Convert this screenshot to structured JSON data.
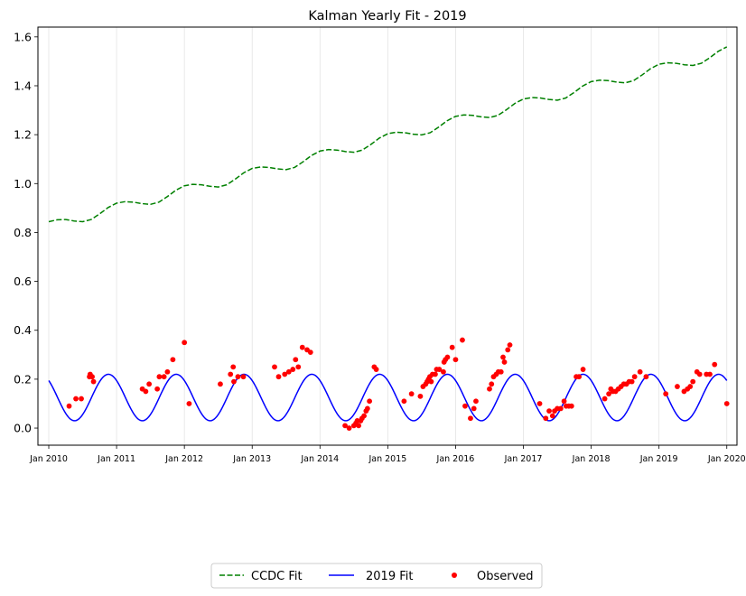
{
  "chart_data": {
    "type": "line",
    "title": "Kalman Yearly Fit - 2019",
    "xlabel": "",
    "ylabel": "",
    "xlim": [
      2009.84,
      2020.15
    ],
    "ylim": [
      -0.07,
      1.64
    ],
    "grid": "vertical-only",
    "x_ticks": [
      {
        "value": 2010,
        "label": "Jan 2010"
      },
      {
        "value": 2011,
        "label": "Jan 2011"
      },
      {
        "value": 2012,
        "label": "Jan 2012"
      },
      {
        "value": 2013,
        "label": "Jan 2013"
      },
      {
        "value": 2014,
        "label": "Jan 2014"
      },
      {
        "value": 2015,
        "label": "Jan 2015"
      },
      {
        "value": 2016,
        "label": "Jan 2016"
      },
      {
        "value": 2017,
        "label": "Jan 2017"
      },
      {
        "value": 2018,
        "label": "Jan 2018"
      },
      {
        "value": 2019,
        "label": "Jan 2019"
      },
      {
        "value": 2020,
        "label": "Jan 2020"
      }
    ],
    "y_ticks": [
      {
        "value": 0.0,
        "label": "0.0"
      },
      {
        "value": 0.2,
        "label": "0.2"
      },
      {
        "value": 0.4,
        "label": "0.4"
      },
      {
        "value": 0.6,
        "label": "0.6"
      },
      {
        "value": 0.8,
        "label": "0.8"
      },
      {
        "value": 1.0,
        "label": "1.0"
      },
      {
        "value": 1.2,
        "label": "1.2"
      },
      {
        "value": 1.4,
        "label": "1.4"
      },
      {
        "value": 1.6,
        "label": "1.6"
      }
    ],
    "legend": {
      "placement": "bottom-center",
      "entries": [
        {
          "label": "CCDC Fit",
          "series": "ccdc"
        },
        {
          "label": "2019 Fit",
          "series": "fit2019"
        },
        {
          "label": "Observed",
          "series": "observed"
        }
      ]
    },
    "series": [
      {
        "id": "ccdc",
        "name": "CCDC Fit",
        "style": "dashed",
        "color": "#008000",
        "x": [
          2010.0,
          2010.125,
          2010.25,
          2010.375,
          2010.5,
          2010.625,
          2010.75,
          2010.875,
          2011.0,
          2011.125,
          2011.25,
          2011.375,
          2011.5,
          2011.625,
          2011.75,
          2011.875,
          2012.0,
          2012.125,
          2012.25,
          2012.375,
          2012.5,
          2012.625,
          2012.75,
          2012.875,
          2013.0,
          2013.125,
          2013.25,
          2013.375,
          2013.5,
          2013.625,
          2013.75,
          2013.875,
          2014.0,
          2014.125,
          2014.25,
          2014.375,
          2014.5,
          2014.625,
          2014.75,
          2014.875,
          2015.0,
          2015.125,
          2015.25,
          2015.375,
          2015.5,
          2015.625,
          2015.75,
          2015.875,
          2016.0,
          2016.125,
          2016.25,
          2016.375,
          2016.5,
          2016.625,
          2016.75,
          2016.875,
          2017.0,
          2017.125,
          2017.25,
          2017.375,
          2017.5,
          2017.625,
          2017.75,
          2017.875,
          2018.0,
          2018.125,
          2018.25,
          2018.375,
          2018.5,
          2018.625,
          2018.75,
          2018.875,
          2019.0,
          2019.125,
          2019.25,
          2019.375,
          2019.5,
          2019.625,
          2019.75,
          2019.875,
          2020.0
        ],
        "values": [
          0.844,
          0.852,
          0.853,
          0.847,
          0.844,
          0.853,
          0.876,
          0.902,
          0.92,
          0.926,
          0.924,
          0.918,
          0.915,
          0.924,
          0.947,
          0.973,
          0.991,
          0.997,
          0.995,
          0.989,
          0.986,
          0.995,
          1.018,
          1.044,
          1.062,
          1.068,
          1.066,
          1.06,
          1.057,
          1.066,
          1.089,
          1.115,
          1.133,
          1.139,
          1.137,
          1.131,
          1.128,
          1.137,
          1.16,
          1.186,
          1.204,
          1.21,
          1.208,
          1.202,
          1.199,
          1.208,
          1.231,
          1.257,
          1.275,
          1.281,
          1.279,
          1.273,
          1.27,
          1.279,
          1.302,
          1.328,
          1.346,
          1.352,
          1.35,
          1.344,
          1.341,
          1.35,
          1.373,
          1.399,
          1.417,
          1.423,
          1.421,
          1.415,
          1.412,
          1.421,
          1.444,
          1.47,
          1.488,
          1.494,
          1.492,
          1.486,
          1.483,
          1.492,
          1.515,
          1.541,
          1.559
        ]
      },
      {
        "id": "fit2019",
        "name": "2019 Fit",
        "style": "solid",
        "color": "#0000ff",
        "amplitude": 0.095,
        "mean": 0.125,
        "period_years": 1.0,
        "peak_phase_year": 0.88,
        "x": [
          2010.0,
          2010.125,
          2010.25,
          2010.375,
          2010.5,
          2010.625,
          2010.75,
          2010.875,
          2011.0,
          2011.125,
          2011.25,
          2011.375,
          2011.5,
          2011.625,
          2011.75,
          2011.875,
          2012.0,
          2012.125,
          2012.25,
          2012.375,
          2012.5,
          2012.625,
          2012.75,
          2012.875,
          2013.0,
          2013.125,
          2013.25,
          2013.375,
          2013.5,
          2013.625,
          2013.75,
          2013.875,
          2014.0,
          2014.125,
          2014.25,
          2014.375,
          2014.5,
          2014.625,
          2014.75,
          2014.875,
          2015.0,
          2015.125,
          2015.25,
          2015.375,
          2015.5,
          2015.625,
          2015.75,
          2015.875,
          2016.0,
          2016.125,
          2016.25,
          2016.375,
          2016.5,
          2016.625,
          2016.75,
          2016.875,
          2017.0,
          2017.125,
          2017.25,
          2017.375,
          2017.5,
          2017.625,
          2017.75,
          2017.875,
          2018.0,
          2018.125,
          2018.25,
          2018.375,
          2018.5,
          2018.625,
          2018.75,
          2018.875,
          2019.0,
          2019.125,
          2019.25,
          2019.375,
          2019.5,
          2019.625,
          2019.75,
          2019.875,
          2020.0
        ],
        "values": [
          0.189,
          0.123,
          0.062,
          0.031,
          0.042,
          0.088,
          0.151,
          0.209,
          0.189,
          0.123,
          0.062,
          0.031,
          0.042,
          0.088,
          0.151,
          0.209,
          0.189,
          0.123,
          0.062,
          0.031,
          0.042,
          0.088,
          0.151,
          0.209,
          0.189,
          0.123,
          0.062,
          0.031,
          0.042,
          0.088,
          0.151,
          0.209,
          0.189,
          0.123,
          0.062,
          0.031,
          0.042,
          0.088,
          0.151,
          0.209,
          0.189,
          0.123,
          0.062,
          0.031,
          0.042,
          0.088,
          0.151,
          0.209,
          0.189,
          0.123,
          0.062,
          0.031,
          0.042,
          0.088,
          0.151,
          0.209,
          0.189,
          0.123,
          0.062,
          0.031,
          0.042,
          0.088,
          0.151,
          0.209,
          0.189,
          0.123,
          0.062,
          0.031,
          0.042,
          0.088,
          0.151,
          0.209,
          0.189,
          0.123,
          0.062,
          0.031,
          0.042,
          0.088,
          0.151,
          0.209,
          0.189
        ]
      },
      {
        "id": "observed",
        "name": "Observed",
        "style": "scatter",
        "color": "#ff0000",
        "points": [
          [
            2010.3,
            0.09
          ],
          [
            2010.4,
            0.12
          ],
          [
            2010.48,
            0.12
          ],
          [
            2010.6,
            0.21
          ],
          [
            2010.61,
            0.22
          ],
          [
            2010.64,
            0.21
          ],
          [
            2010.66,
            0.19
          ],
          [
            2011.38,
            0.16
          ],
          [
            2011.43,
            0.15
          ],
          [
            2011.48,
            0.18
          ],
          [
            2011.6,
            0.16
          ],
          [
            2011.63,
            0.21
          ],
          [
            2011.7,
            0.21
          ],
          [
            2011.75,
            0.23
          ],
          [
            2011.83,
            0.28
          ],
          [
            2012.0,
            0.35
          ],
          [
            2012.07,
            0.1
          ],
          [
            2012.53,
            0.18
          ],
          [
            2012.68,
            0.22
          ],
          [
            2012.72,
            0.25
          ],
          [
            2012.73,
            0.19
          ],
          [
            2012.79,
            0.21
          ],
          [
            2012.87,
            0.21
          ],
          [
            2013.33,
            0.25
          ],
          [
            2013.39,
            0.21
          ],
          [
            2013.48,
            0.22
          ],
          [
            2013.54,
            0.23
          ],
          [
            2013.6,
            0.24
          ],
          [
            2013.64,
            0.28
          ],
          [
            2013.68,
            0.25
          ],
          [
            2013.74,
            0.33
          ],
          [
            2013.81,
            0.32
          ],
          [
            2013.86,
            0.31
          ],
          [
            2014.37,
            0.01
          ],
          [
            2014.43,
            0.0
          ],
          [
            2014.5,
            0.01
          ],
          [
            2014.53,
            0.02
          ],
          [
            2014.55,
            0.03
          ],
          [
            2014.57,
            0.01
          ],
          [
            2014.6,
            0.03
          ],
          [
            2014.62,
            0.04
          ],
          [
            2014.65,
            0.05
          ],
          [
            2014.68,
            0.07
          ],
          [
            2014.7,
            0.08
          ],
          [
            2014.73,
            0.11
          ],
          [
            2014.8,
            0.25
          ],
          [
            2014.83,
            0.24
          ],
          [
            2015.24,
            0.11
          ],
          [
            2015.35,
            0.14
          ],
          [
            2015.48,
            0.13
          ],
          [
            2015.52,
            0.17
          ],
          [
            2015.56,
            0.18
          ],
          [
            2015.58,
            0.19
          ],
          [
            2015.6,
            0.2
          ],
          [
            2015.62,
            0.21
          ],
          [
            2015.64,
            0.19
          ],
          [
            2015.66,
            0.22
          ],
          [
            2015.7,
            0.22
          ],
          [
            2015.72,
            0.24
          ],
          [
            2015.76,
            0.24
          ],
          [
            2015.82,
            0.23
          ],
          [
            2015.83,
            0.27
          ],
          [
            2015.85,
            0.28
          ],
          [
            2015.88,
            0.29
          ],
          [
            2015.95,
            0.33
          ],
          [
            2016.0,
            0.28
          ],
          [
            2016.1,
            0.36
          ],
          [
            2016.14,
            0.09
          ],
          [
            2016.22,
            0.04
          ],
          [
            2016.27,
            0.08
          ],
          [
            2016.3,
            0.11
          ],
          [
            2016.5,
            0.16
          ],
          [
            2016.53,
            0.18
          ],
          [
            2016.56,
            0.21
          ],
          [
            2016.6,
            0.22
          ],
          [
            2016.63,
            0.23
          ],
          [
            2016.67,
            0.23
          ],
          [
            2016.7,
            0.29
          ],
          [
            2016.72,
            0.27
          ],
          [
            2016.77,
            0.32
          ],
          [
            2016.8,
            0.34
          ],
          [
            2017.24,
            0.1
          ],
          [
            2017.33,
            0.04
          ],
          [
            2017.38,
            0.07
          ],
          [
            2017.43,
            0.05
          ],
          [
            2017.46,
            0.07
          ],
          [
            2017.5,
            0.08
          ],
          [
            2017.55,
            0.08
          ],
          [
            2017.6,
            0.11
          ],
          [
            2017.63,
            0.09
          ],
          [
            2017.67,
            0.09
          ],
          [
            2017.71,
            0.09
          ],
          [
            2017.78,
            0.21
          ],
          [
            2017.82,
            0.21
          ],
          [
            2017.88,
            0.24
          ],
          [
            2018.2,
            0.12
          ],
          [
            2018.26,
            0.14
          ],
          [
            2018.29,
            0.16
          ],
          [
            2018.32,
            0.15
          ],
          [
            2018.36,
            0.15
          ],
          [
            2018.4,
            0.16
          ],
          [
            2018.44,
            0.17
          ],
          [
            2018.48,
            0.18
          ],
          [
            2018.52,
            0.18
          ],
          [
            2018.56,
            0.19
          ],
          [
            2018.6,
            0.19
          ],
          [
            2018.64,
            0.21
          ],
          [
            2018.72,
            0.23
          ],
          [
            2018.81,
            0.21
          ],
          [
            2019.1,
            0.14
          ],
          [
            2019.27,
            0.17
          ],
          [
            2019.37,
            0.15
          ],
          [
            2019.42,
            0.16
          ],
          [
            2019.46,
            0.17
          ],
          [
            2019.5,
            0.19
          ],
          [
            2019.56,
            0.23
          ],
          [
            2019.6,
            0.22
          ],
          [
            2019.7,
            0.22
          ],
          [
            2019.75,
            0.22
          ],
          [
            2019.82,
            0.26
          ],
          [
            2020.0,
            0.1
          ]
        ]
      }
    ]
  }
}
